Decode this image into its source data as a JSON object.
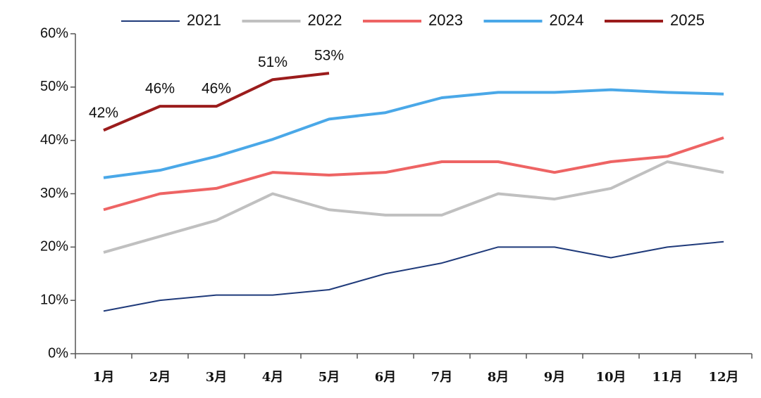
{
  "chart_data": {
    "type": "line",
    "categories": [
      "1月",
      "2月",
      "3月",
      "4月",
      "5月",
      "6月",
      "7月",
      "8月",
      "9月",
      "10月",
      "11月",
      "12月"
    ],
    "series": [
      {
        "name": "2021",
        "color": "#1f3a7a",
        "width": 2,
        "values": [
          8,
          10,
          11,
          11,
          12,
          15,
          17,
          20,
          20,
          18,
          20,
          21
        ]
      },
      {
        "name": "2022",
        "color": "#c0c0c0",
        "width": 4,
        "values": [
          19,
          22,
          25,
          30,
          27,
          26,
          26,
          30,
          29,
          31,
          36,
          34
        ]
      },
      {
        "name": "2023",
        "color": "#ee6464",
        "width": 4,
        "values": [
          27,
          30,
          31,
          34,
          33.5,
          34,
          36,
          36,
          34,
          36,
          37,
          40.5
        ]
      },
      {
        "name": "2024",
        "color": "#4aa8e8",
        "width": 4,
        "values": [
          33,
          34.4,
          37,
          40.2,
          44,
          45.2,
          48,
          49,
          49,
          49.5,
          49,
          48.7
        ]
      },
      {
        "name": "2025",
        "color": "#9b1c1c",
        "width": 4,
        "values": [
          41.9,
          46.4,
          46.4,
          51.4,
          52.6,
          null,
          null,
          null,
          null,
          null,
          null,
          null
        ],
        "value_labels": [
          "42%",
          "46%",
          "46%",
          "51%",
          "53%",
          null,
          null,
          null,
          null,
          null,
          null,
          null
        ]
      }
    ],
    "ylim": [
      0,
      60
    ],
    "yticks": [
      {
        "value": 0,
        "label": "0%"
      },
      {
        "value": 10,
        "label": "10%"
      },
      {
        "value": 20,
        "label": "20%"
      },
      {
        "value": 30,
        "label": "30%"
      },
      {
        "value": 40,
        "label": "40%"
      },
      {
        "value": 50,
        "label": "50%"
      },
      {
        "value": 60,
        "label": "60%"
      }
    ],
    "grid": false,
    "legend": "top"
  }
}
